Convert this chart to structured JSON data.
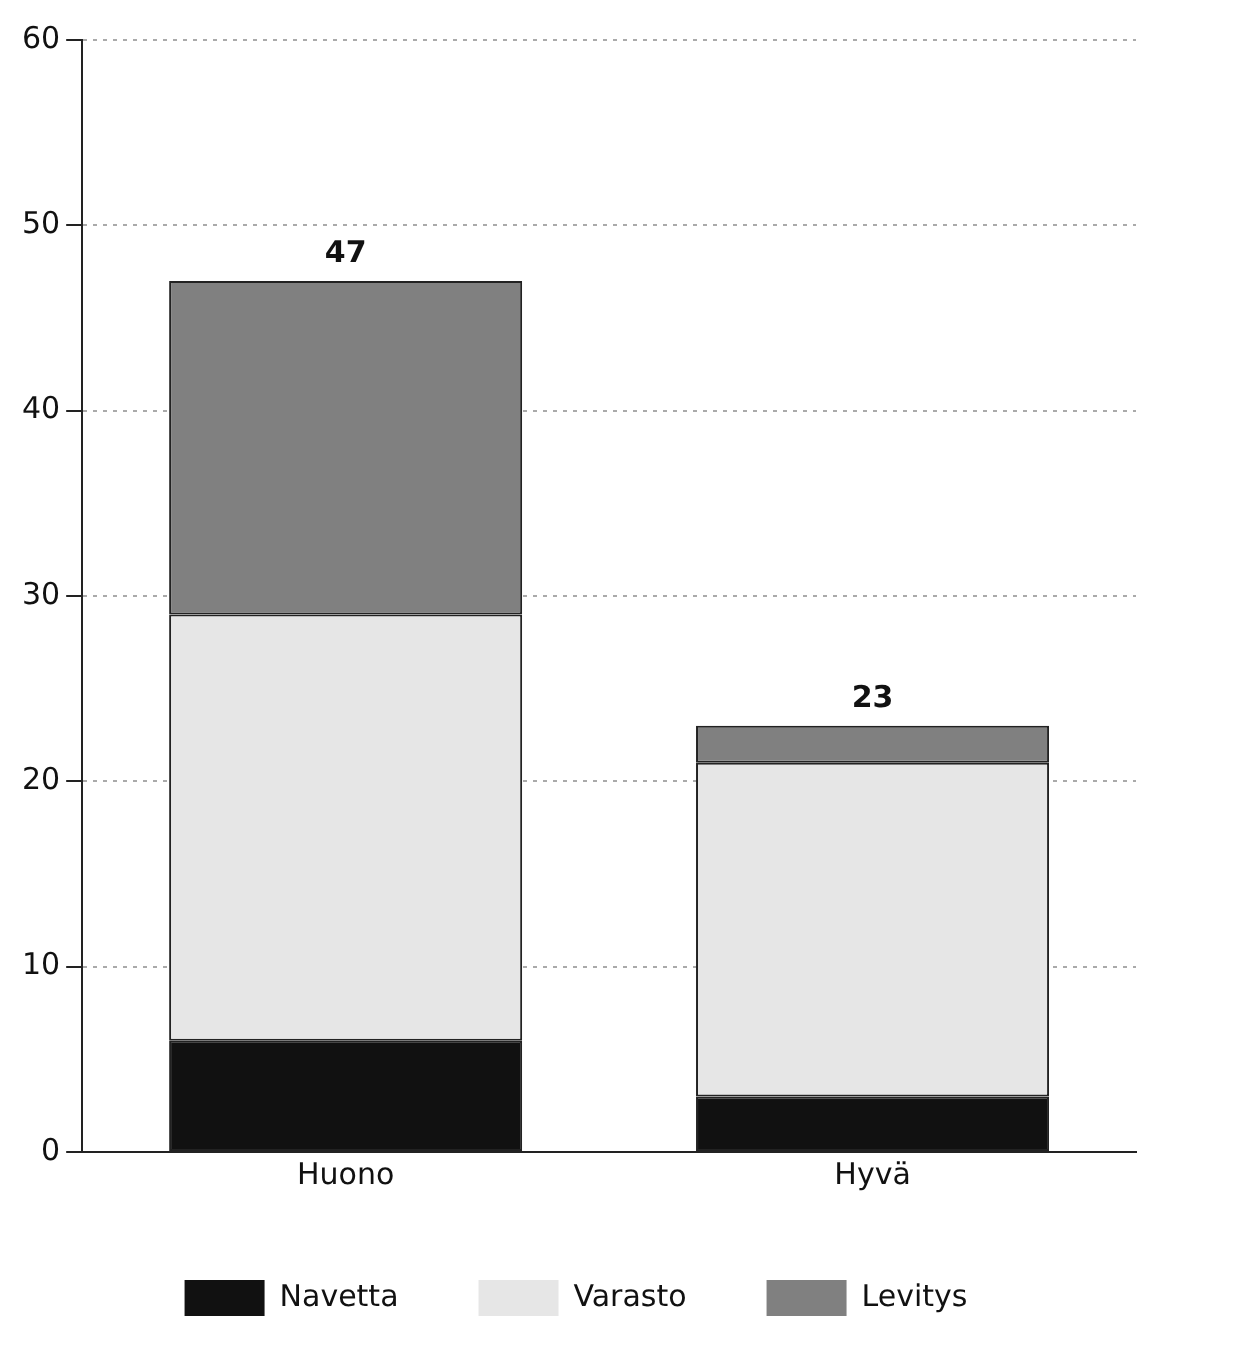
{
  "chart_data": {
    "type": "bar",
    "stacked": true,
    "categories": [
      "Huono",
      "Hyvä"
    ],
    "series": [
      {
        "name": "Navetta",
        "color": "#111111",
        "values": [
          6,
          3
        ]
      },
      {
        "name": "Varasto",
        "color": "#e6e6e6",
        "values": [
          23,
          18
        ]
      },
      {
        "name": "Levitys",
        "color": "#808080",
        "values": [
          18,
          2
        ]
      }
    ],
    "totals": [
      "47",
      "23"
    ],
    "ylim": [
      0,
      60
    ],
    "yticks": [
      0,
      10,
      20,
      30,
      40,
      50,
      60
    ],
    "grid": "y",
    "legend": "bottom"
  }
}
